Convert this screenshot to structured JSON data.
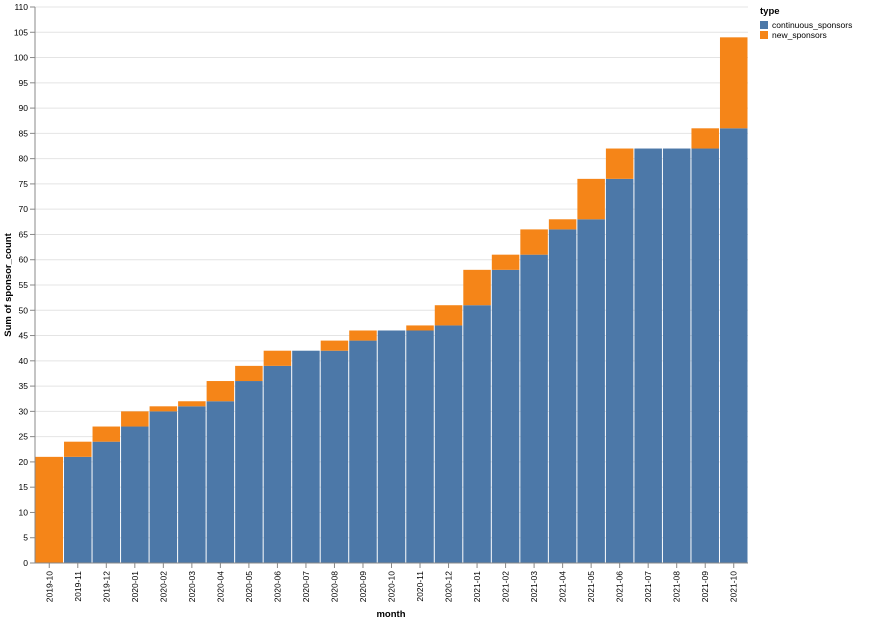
{
  "chart_data": {
    "type": "bar",
    "stacked": true,
    "xlabel": "month",
    "ylabel": "Sum of sponsor_count",
    "ylim": [
      0,
      110
    ],
    "yticks": [
      0,
      5,
      10,
      15,
      20,
      25,
      30,
      35,
      40,
      45,
      50,
      55,
      60,
      65,
      70,
      75,
      80,
      85,
      90,
      95,
      100,
      105,
      110
    ],
    "grid": true,
    "legend": {
      "title": "type",
      "placement": "top-right",
      "items": [
        {
          "label": "continuous_sponsors",
          "color": "#4c78a8"
        },
        {
          "label": "new_sponsors",
          "color": "#f58518"
        }
      ]
    },
    "categories": [
      "2019-10",
      "2019-11",
      "2019-12",
      "2020-01",
      "2020-02",
      "2020-03",
      "2020-04",
      "2020-05",
      "2020-06",
      "2020-07",
      "2020-08",
      "2020-09",
      "2020-10",
      "2020-11",
      "2020-12",
      "2021-01",
      "2021-02",
      "2021-03",
      "2021-04",
      "2021-05",
      "2021-06",
      "2021-07",
      "2021-08",
      "2021-09",
      "2021-10"
    ],
    "series": [
      {
        "name": "continuous_sponsors",
        "color": "#4c78a8",
        "values": [
          0,
          21,
          24,
          27,
          30,
          31,
          32,
          36,
          39,
          42,
          42,
          44,
          46,
          46,
          47,
          51,
          58,
          61,
          66,
          68,
          76,
          82,
          82,
          82,
          86
        ]
      },
      {
        "name": "new_sponsors",
        "color": "#f58518",
        "values": [
          21,
          3,
          3,
          3,
          1,
          1,
          4,
          3,
          3,
          0,
          2,
          2,
          0,
          1,
          4,
          7,
          3,
          5,
          2,
          8,
          6,
          0,
          0,
          4,
          18
        ]
      }
    ]
  }
}
